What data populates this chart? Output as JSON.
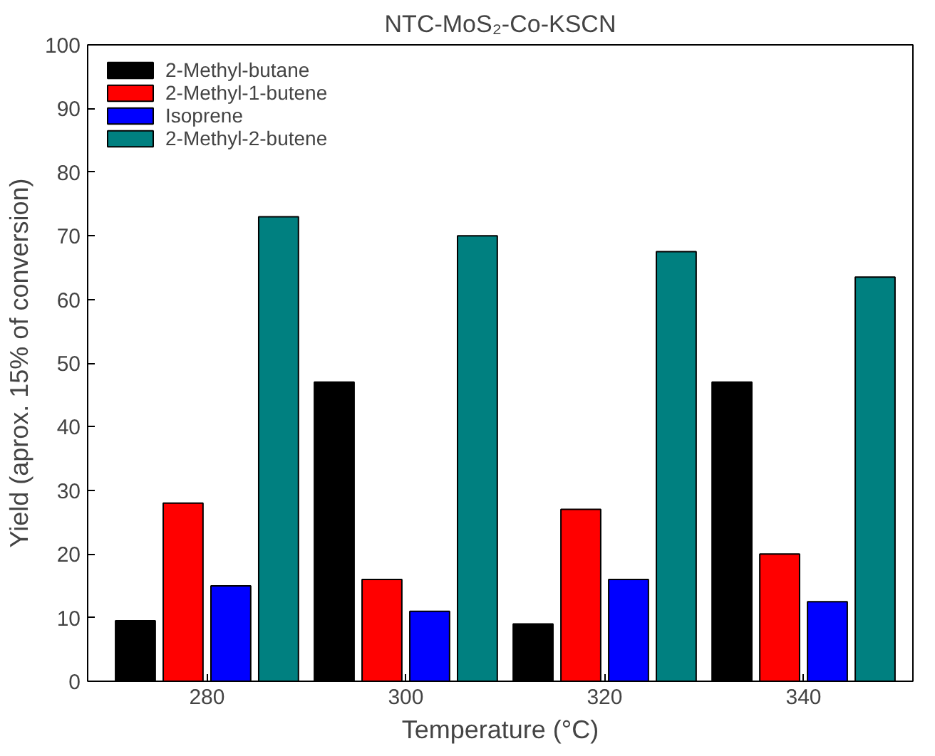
{
  "chart_data": {
    "type": "bar",
    "title": "NTC-MoS₂-Co-KSCN",
    "xlabel": "Temperature (°C)",
    "ylabel": "Yield (aprox. 15% of conversion)",
    "categories": [
      "280",
      "300",
      "320",
      "340"
    ],
    "series": [
      {
        "name": "2-Methyl-butane",
        "color": "#000000",
        "values": [
          9.5,
          47,
          9,
          47
        ]
      },
      {
        "name": "2-Methyl-1-butene",
        "color": "#ff0000",
        "values": [
          28,
          16,
          27,
          20
        ]
      },
      {
        "name": "Isoprene",
        "color": "#0000ff",
        "values": [
          15,
          11,
          16,
          12.5
        ]
      },
      {
        "name": "2-Methyl-2-butene",
        "color": "#008080",
        "values": [
          73,
          70,
          67.5,
          63.5
        ]
      }
    ],
    "ylim": [
      0,
      100
    ],
    "yticks": [
      0,
      10,
      20,
      30,
      40,
      50,
      60,
      70,
      80,
      90,
      100
    ],
    "grid": false,
    "legend": "top left"
  }
}
